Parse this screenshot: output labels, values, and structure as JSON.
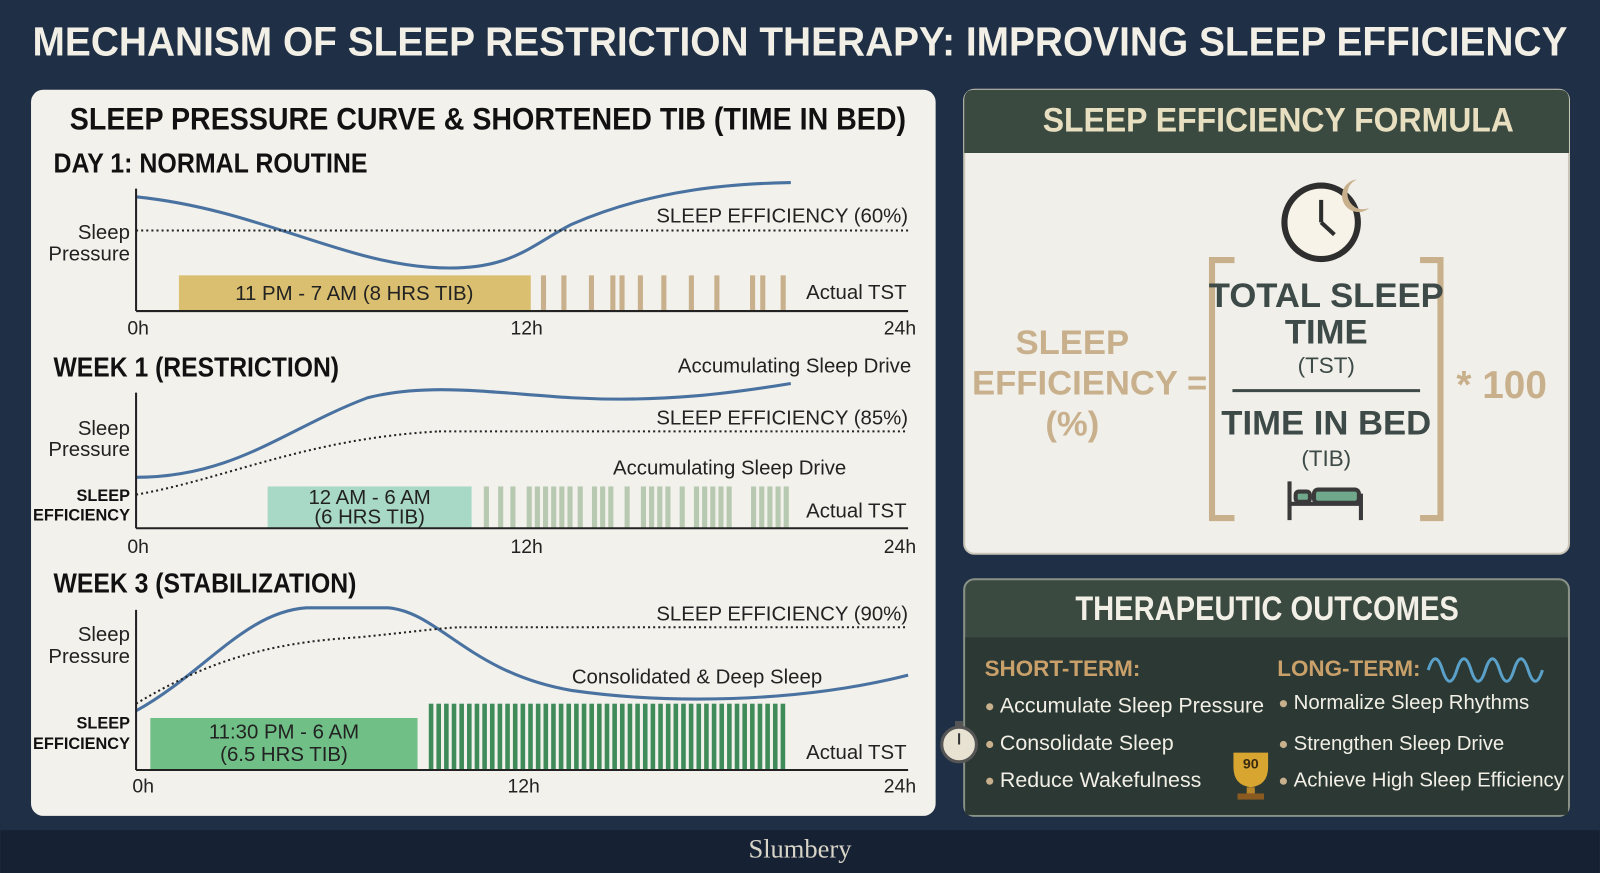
{
  "title": "MECHANISM OF SLEEP RESTRICTION THERAPY: IMPROVING SLEEP EFFICIENCY",
  "left_panel": {
    "title": "SLEEP PRESSURE CURVE & SHORTENED TIB (TIME IN BED)",
    "panels": [
      {
        "heading": "DAY 1: NORMAL ROUTINE",
        "y_label": [
          "Sleep",
          "Pressure"
        ],
        "efficiency": "SLEEP EFFICIENCY (60%)",
        "tib": [
          "11 PM - 7 AM (8 HRS TIB)"
        ],
        "tst": "Actual TST",
        "x_ticks": [
          "0h",
          "12h",
          "24h"
        ]
      },
      {
        "heading": "WEEK 1 (RESTRICTION)",
        "top_note": "Accumulating Sleep Drive",
        "y_label": [
          "Sleep",
          "Pressure"
        ],
        "efficiency": "SLEEP EFFICIENCY (85%)",
        "note": "Accumulating Sleep Drive",
        "secondary_label": [
          "SLEEP",
          "EFFICIENCY"
        ],
        "tib": [
          "12 AM - 6 AM",
          "(6 HRS TIB)"
        ],
        "tst": "Actual TST",
        "x_ticks": [
          "0h",
          "12h",
          "24h"
        ]
      },
      {
        "heading": "WEEK 3 (STABILIZATION)",
        "y_label": [
          "Sleep",
          "Pressure"
        ],
        "efficiency": "SLEEP EFFICIENCY (90%)",
        "note": "Consolidated & Deep Sleep",
        "secondary_label": [
          "SLEEP",
          "EFFICIENCY"
        ],
        "tib": [
          "11:30 PM - 6 AM",
          "(6.5 HRS TIB)"
        ],
        "tst": "Actual TST",
        "x_ticks": [
          "0h",
          "12h",
          "24h"
        ]
      }
    ]
  },
  "formula": {
    "title": "SLEEP EFFICIENCY FORMULA",
    "lhs": [
      "SLEEP",
      "EFFICIENCY =",
      "(%)"
    ],
    "numerator": [
      "TOTAL SLEEP",
      "TIME"
    ],
    "numerator_abbr": "(TST)",
    "denominator": "TIME IN BED",
    "denominator_abbr": "(TIB)",
    "multiplier": "* 100"
  },
  "outcomes": {
    "title": "THERAPEUTIC OUTCOMES",
    "short_term": {
      "heading": "SHORT-TERM:",
      "items": [
        "Accumulate Sleep Pressure",
        "Consolidate Sleep",
        "Reduce Wakefulness"
      ]
    },
    "long_term": {
      "heading": "LONG-TERM:",
      "items": [
        "Normalize Sleep Rhythms",
        "Strengthen Sleep Drive",
        "Achieve High Sleep Efficiency"
      ]
    },
    "trophy": "90"
  },
  "footer": "Slumbery"
}
